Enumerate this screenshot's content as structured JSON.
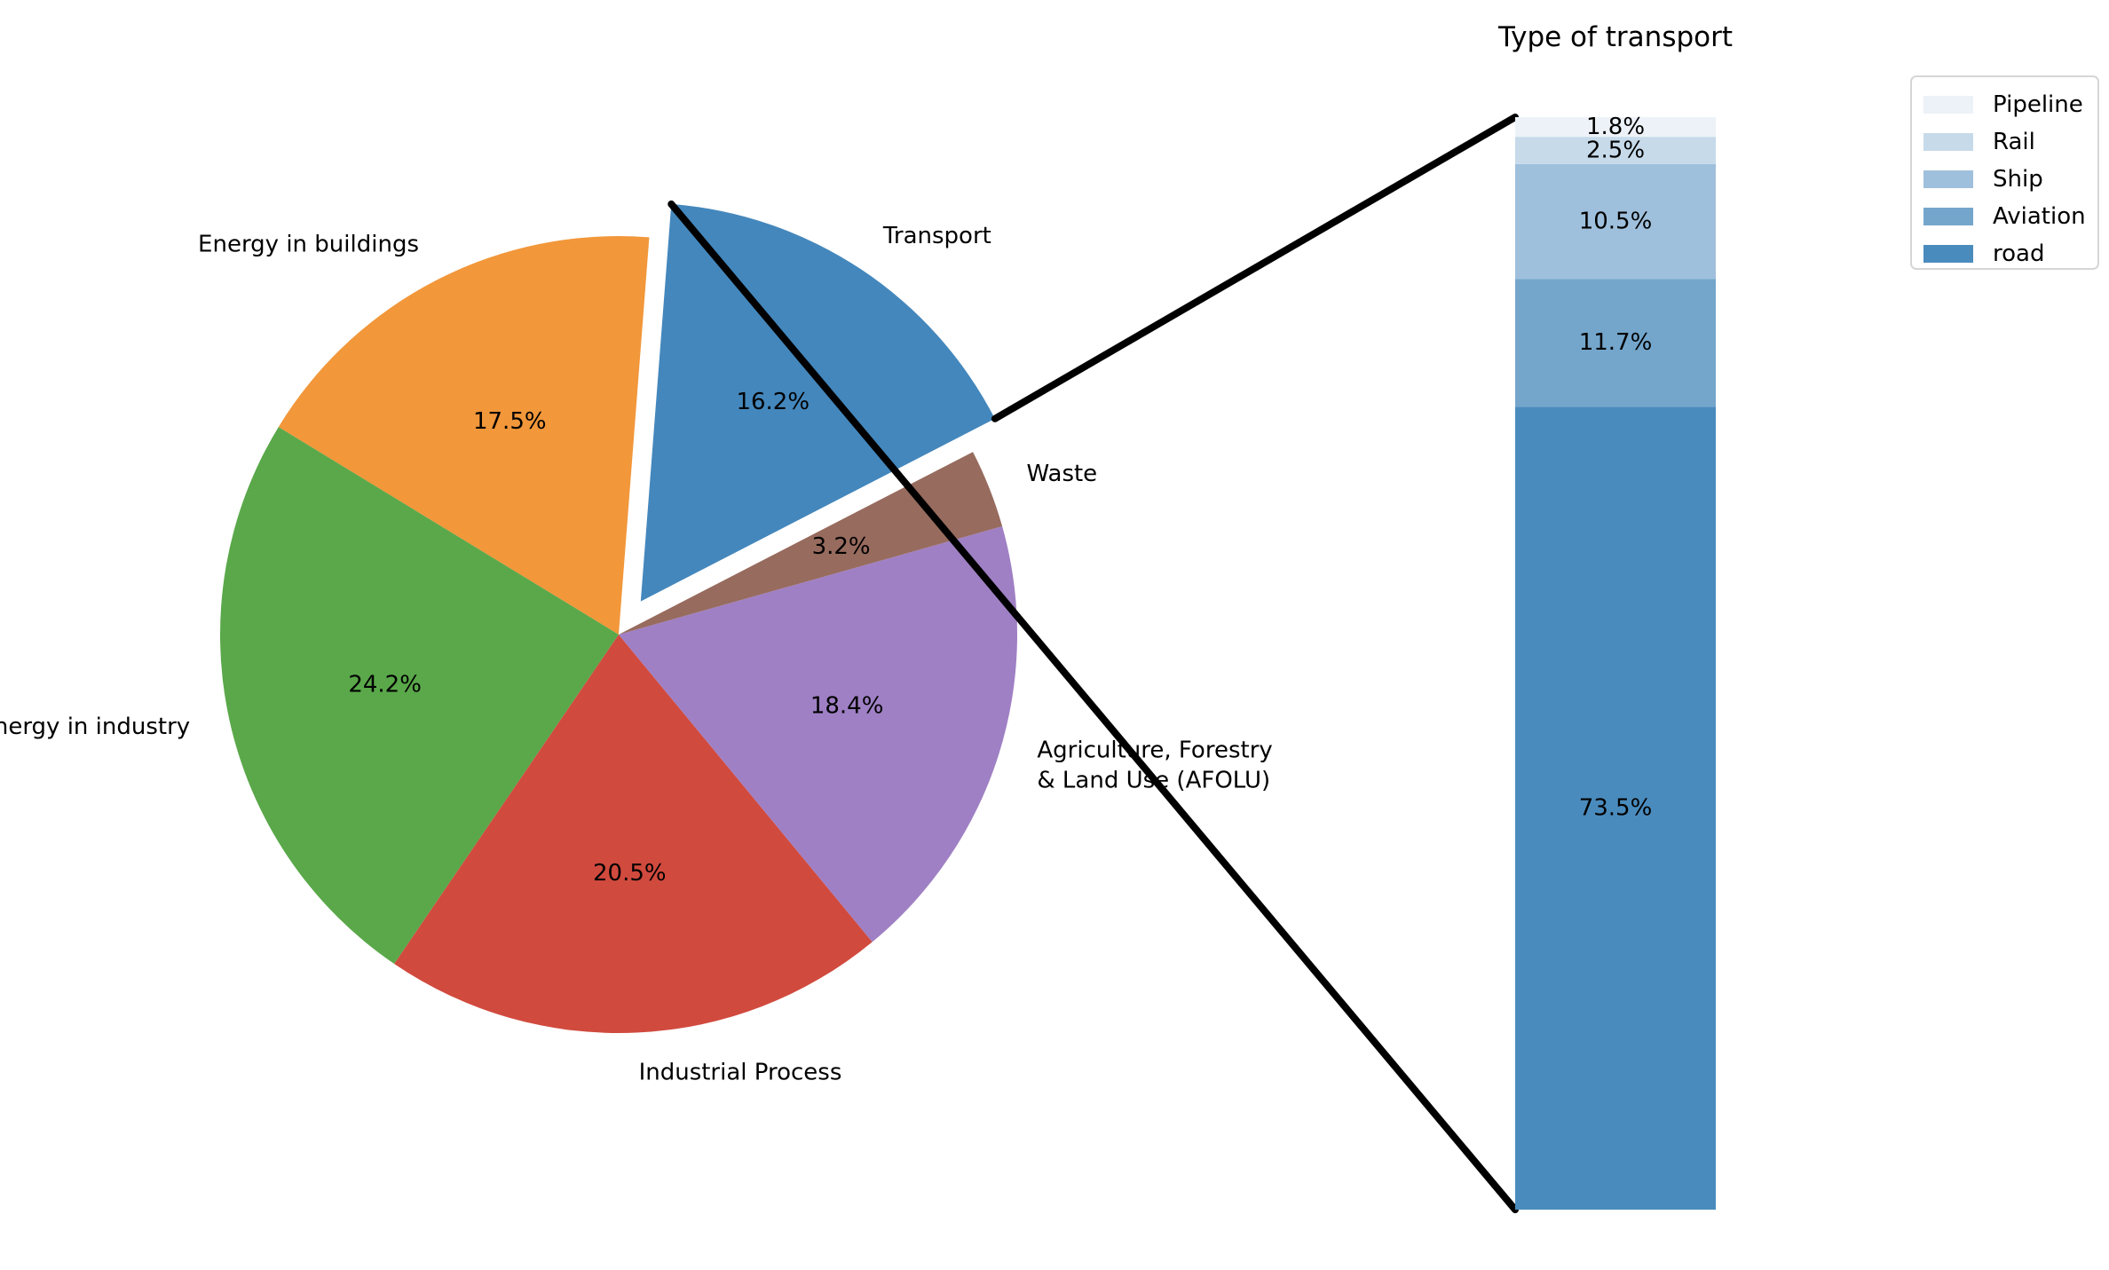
{
  "chart_data": [
    {
      "type": "pie",
      "slices": [
        {
          "label": "Energy in buildings",
          "value": 17.5,
          "pct_label": "17.5%",
          "color": "#f2973a",
          "exploded": false
        },
        {
          "label": "Energy in industry",
          "value": 24.2,
          "pct_label": "24.2%",
          "color": "#5aa84a",
          "exploded": false
        },
        {
          "label": "Industrial Process",
          "value": 20.5,
          "pct_label": "20.5%",
          "color": "#d14a3e",
          "exploded": false
        },
        {
          "label": "Agriculture, Forestry\n& Land Use (AFOLU)",
          "value": 18.4,
          "pct_label": "18.4%",
          "color": "#9f80c4",
          "exploded": false
        },
        {
          "label": "Waste",
          "value": 3.2,
          "pct_label": "3.2%",
          "color": "#976b5e",
          "exploded": false
        },
        {
          "label": "Transport",
          "value": 16.2,
          "pct_label": "16.2%",
          "color": "#4487bc",
          "exploded": true
        }
      ]
    },
    {
      "type": "bar",
      "stacked": true,
      "title": "Type of transport",
      "legend_position": "top-right",
      "series": [
        {
          "name": "road",
          "value": 73.5,
          "pct_label": "73.5%",
          "color": "#4a8bbd"
        },
        {
          "name": "Aviation",
          "value": 11.7,
          "pct_label": "11.7%",
          "color": "#74a6cc"
        },
        {
          "name": "Ship",
          "value": 10.5,
          "pct_label": "10.5%",
          "color": "#9fc0dc"
        },
        {
          "name": "Rail",
          "value": 2.5,
          "pct_label": "2.5%",
          "color": "#c6daea"
        },
        {
          "name": "Pipeline",
          "value": 1.8,
          "pct_label": "1.8%",
          "color": "#ecf2f7"
        }
      ]
    }
  ]
}
